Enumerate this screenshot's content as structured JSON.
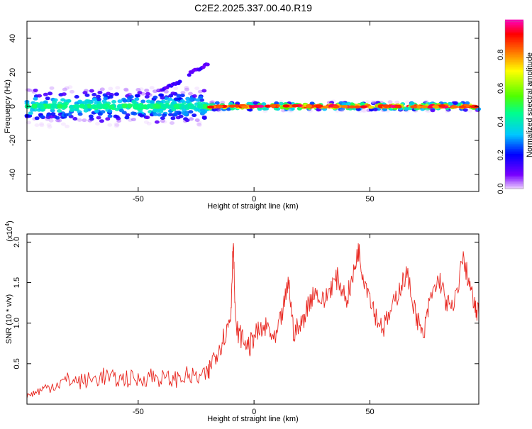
{
  "title": "C2E2.2025.337.00.40.R19",
  "chart_data": [
    {
      "type": "heatmap",
      "xlabel": "Height of straight line (km)",
      "ylabel": "Frequency (Hz)",
      "xlim": [
        -98,
        97
      ],
      "ylim": [
        -50,
        50
      ],
      "xticks": [
        -50,
        0,
        50
      ],
      "yticks": [
        -40,
        -20,
        0,
        20,
        40
      ],
      "colorbar": {
        "label": "Normalized spectral amplitude",
        "ticks": [
          0.0,
          0.2,
          0.4,
          0.6,
          0.8
        ],
        "range": [
          0,
          1
        ]
      },
      "bands": [
        {
          "x": [
            -98,
            -20
          ],
          "freq_center": 0,
          "freq_halfwidth": 8,
          "peak_amplitude": 0.45
        },
        {
          "x": [
            -20,
            97
          ],
          "freq_center": 0,
          "freq_halfwidth": 2,
          "peak_amplitude": 0.9
        }
      ],
      "traces": [
        {
          "x": [
            -40,
            -32
          ],
          "freq": [
            10,
            14
          ]
        },
        {
          "x": [
            -28,
            -20
          ],
          "freq": [
            19,
            25
          ]
        }
      ]
    },
    {
      "type": "line",
      "xlabel": "Height of straight line (km)",
      "ylabel": "SNR (10 * v/v)",
      "y_multiplier": "(x10",
      "y_multiplier_exp": "4",
      "y_multiplier_close": ")",
      "xlim": [
        -98,
        97
      ],
      "ylim": [
        0,
        2.1
      ],
      "xticks": [
        -50,
        0,
        50
      ],
      "yticks": [
        0.5,
        1.0,
        1.5,
        2.0
      ],
      "ytick_labels": [
        "0.5",
        "1.0",
        "1.5",
        "2.0"
      ],
      "color": "#e8261f",
      "series": [
        {
          "name": "SNR",
          "x": [
            -98,
            -94,
            -90,
            -85,
            -80,
            -75,
            -70,
            -65,
            -60,
            -55,
            -50,
            -45,
            -40,
            -35,
            -30,
            -25,
            -20,
            -18,
            -15,
            -12,
            -10,
            -9,
            -8,
            -5,
            -2,
            0,
            3,
            6,
            9,
            12,
            15,
            17,
            20,
            23,
            26,
            30,
            33,
            36,
            40,
            43,
            45,
            47,
            50,
            53,
            56,
            60,
            63,
            66,
            70,
            73,
            76,
            80,
            83,
            86,
            90,
            93,
            95,
            97
          ],
          "y": [
            0.1,
            0.15,
            0.2,
            0.25,
            0.3,
            0.28,
            0.3,
            0.35,
            0.3,
            0.32,
            0.3,
            0.35,
            0.32,
            0.3,
            0.35,
            0.33,
            0.35,
            0.55,
            0.7,
            0.9,
            1.1,
            2.08,
            0.95,
            0.8,
            0.7,
            0.85,
            0.9,
            0.95,
            0.75,
            1.1,
            1.5,
            0.9,
            0.95,
            1.2,
            1.4,
            1.25,
            1.45,
            1.55,
            1.3,
            1.6,
            1.92,
            1.6,
            1.35,
            1.05,
            0.95,
            1.2,
            1.45,
            1.6,
            1.1,
            0.8,
            1.3,
            1.55,
            1.25,
            1.15,
            1.8,
            1.5,
            1.2,
            1.1
          ]
        }
      ]
    }
  ]
}
